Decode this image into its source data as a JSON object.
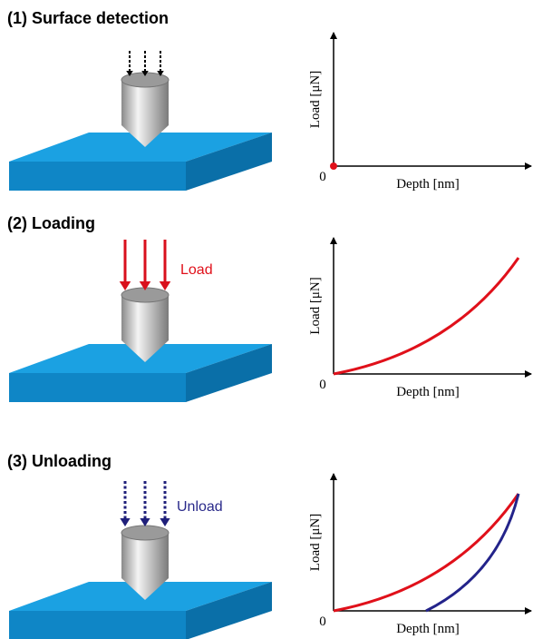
{
  "panels": [
    {
      "title": "(1) Surface detection",
      "y_label": "Load [μN]",
      "x_label": "Depth [nm]",
      "origin": "0"
    },
    {
      "title": "(2) Loading",
      "force_label": "Load",
      "y_label": "Load [μN]",
      "x_label": "Depth [nm]",
      "origin": "0"
    },
    {
      "title": "(3) Unloading",
      "force_label": "Unload",
      "y_label": "Load [μN]",
      "x_label": "Depth [nm]",
      "origin": "0"
    }
  ]
}
